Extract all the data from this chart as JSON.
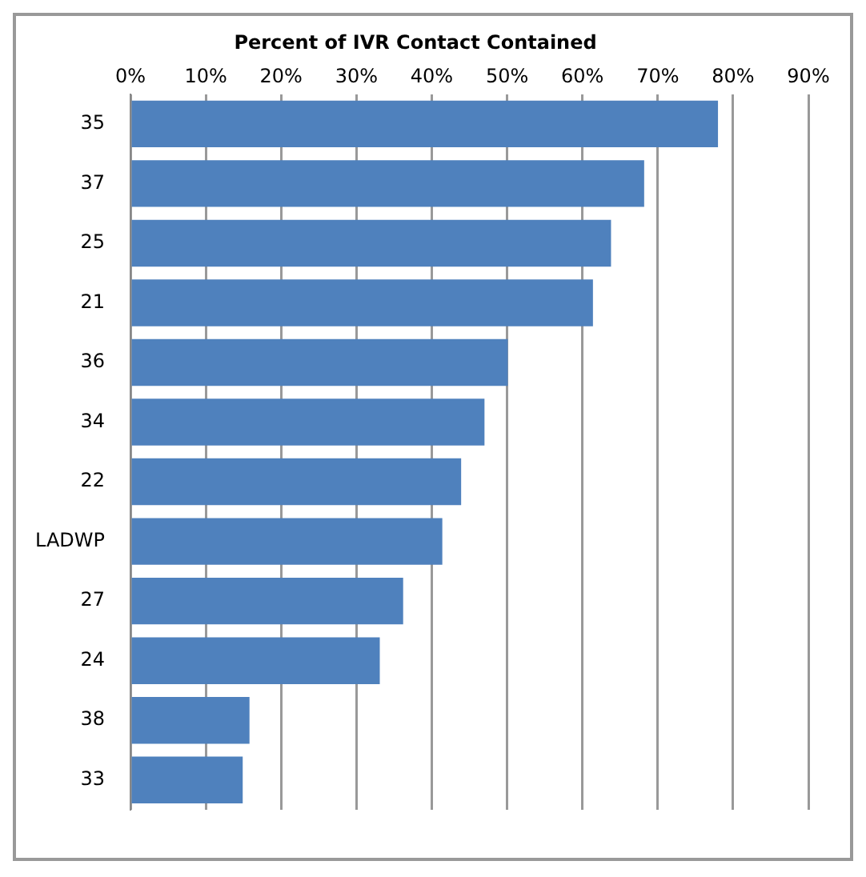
{
  "chart_data": {
    "type": "bar",
    "orientation": "horizontal",
    "title": "Percent of IVR Contact Contained",
    "categories": [
      "35",
      "37",
      "25",
      "21",
      "36",
      "34",
      "22",
      "LADWP",
      "27",
      "24",
      "38",
      "33"
    ],
    "values": [
      78,
      68.2,
      63.8,
      61.4,
      50.1,
      47,
      43.9,
      41.4,
      36.2,
      33.1,
      15.8,
      14.9
    ],
    "color": "#4f81bd",
    "xlim": [
      0,
      90
    ],
    "xticks": [
      {
        "value": 0,
        "label": "0%"
      },
      {
        "value": 10,
        "label": "10%"
      },
      {
        "value": 20,
        "label": "20%"
      },
      {
        "value": 30,
        "label": "30%"
      },
      {
        "value": 40,
        "label": "40%"
      },
      {
        "value": 50,
        "label": "50%"
      },
      {
        "value": 60,
        "label": "60%"
      },
      {
        "value": 70,
        "label": "70%"
      },
      {
        "value": 80,
        "label": "80%"
      },
      {
        "value": 90,
        "label": "90%"
      }
    ],
    "grid": "x",
    "legend": false
  }
}
